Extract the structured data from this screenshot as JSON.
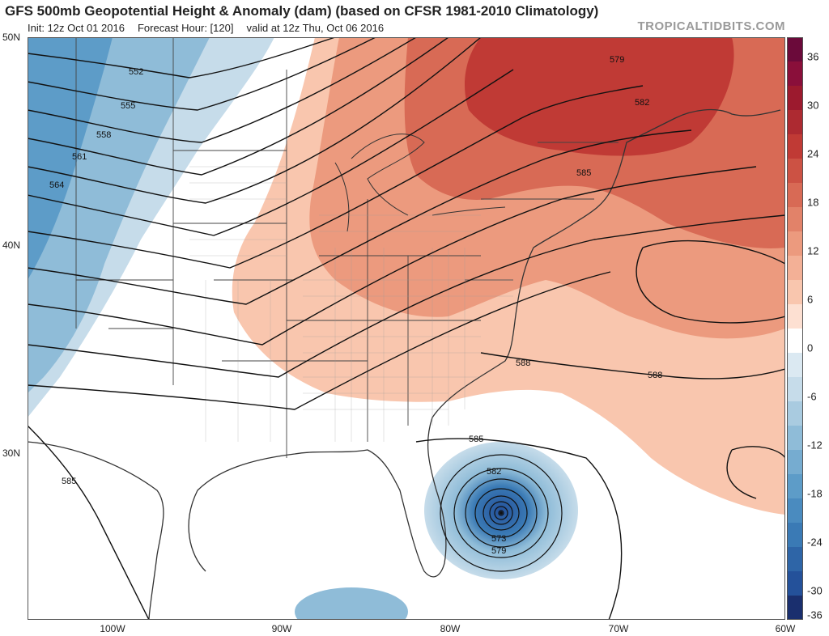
{
  "header": {
    "title": "GFS 500mb Geopotential Height & Anomaly (dam) (based on CFSR 1981-2010 Climatology)",
    "init": "Init: 12z Oct 01 2016",
    "forecast_hour": "Forecast Hour: [120]",
    "valid": "valid at 12z Thu, Oct 06 2016",
    "site": "TROPICALTIDBITS.COM"
  },
  "axes": {
    "lat_labels": [
      "50N",
      "40N",
      "30N"
    ],
    "lon_labels": [
      "100W",
      "90W",
      "80W",
      "70W",
      "60W"
    ]
  },
  "colorbar": {
    "labels": [
      "36",
      "30",
      "24",
      "18",
      "12",
      "6",
      "0",
      "-6",
      "-12",
      "-18",
      "-24",
      "-30",
      "-36"
    ],
    "colors": {
      "pos_36": "#6b0a3a",
      "pos_30": "#9c1a2e",
      "pos_24": "#c03a35",
      "pos_18": "#d86a55",
      "pos_12": "#ec9a7e",
      "pos_6": "#f9c6ae",
      "zero": "#ffffff",
      "neg_6": "#c6dcea",
      "neg_12": "#8fbcd8",
      "neg_18": "#5d9cc8",
      "neg_24": "#3a7ab5",
      "neg_30": "#24519a",
      "neg_36": "#1a2f6e"
    }
  },
  "contours": {
    "labels": [
      "552",
      "555",
      "558",
      "561",
      "564",
      "579",
      "582",
      "585",
      "588",
      "588",
      "585",
      "585",
      "582",
      "573",
      "579"
    ]
  },
  "features": {
    "storm_center": "hurricane-low-icon"
  }
}
